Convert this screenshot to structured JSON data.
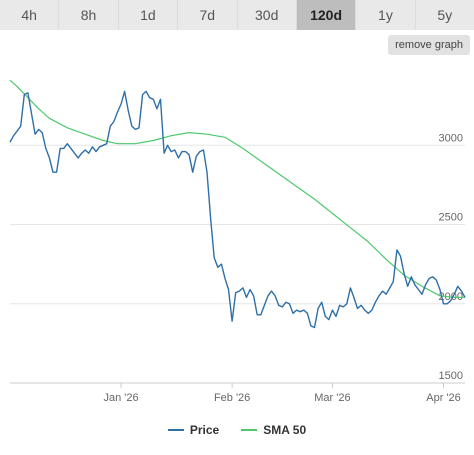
{
  "tabs": [
    {
      "label": "4h",
      "active": false
    },
    {
      "label": "8h",
      "active": false
    },
    {
      "label": "1d",
      "active": false
    },
    {
      "label": "7d",
      "active": false
    },
    {
      "label": "30d",
      "active": false
    },
    {
      "label": "120d",
      "active": true
    },
    {
      "label": "1y",
      "active": false
    },
    {
      "label": "5y",
      "active": false
    }
  ],
  "remove_graph_label": "remove graph",
  "colors": {
    "price": "#2f6fa8",
    "sma": "#4cc96c",
    "grid": "#e6e6e6",
    "axis": "#cccccc"
  },
  "chart_data": {
    "type": "line",
    "title": "",
    "xlabel": "",
    "ylabel": "",
    "ylim": [
      1500,
      3500
    ],
    "xlim": [
      "2025-12-01",
      "2026-04-07"
    ],
    "y_ticks": [
      1500,
      2000,
      2500,
      3000
    ],
    "x_ticks": [
      {
        "date": "2026-01-01",
        "label": "Jan '26"
      },
      {
        "date": "2026-02-01",
        "label": "Feb '26"
      },
      {
        "date": "2026-03-01",
        "label": "Mar '26"
      },
      {
        "date": "2026-04-01",
        "label": "Apr '26"
      }
    ],
    "grid": true,
    "legend": "bottom-center",
    "series": [
      {
        "name": "Price",
        "color": "#2f6fa8",
        "x": [
          "2025-12-01",
          "2025-12-02",
          "2025-12-04",
          "2025-12-05",
          "2025-12-06",
          "2025-12-08",
          "2025-12-09",
          "2025-12-10",
          "2025-12-11",
          "2025-12-12",
          "2025-12-13",
          "2025-12-14",
          "2025-12-15",
          "2025-12-16",
          "2025-12-17",
          "2025-12-19",
          "2025-12-20",
          "2025-12-21",
          "2025-12-22",
          "2025-12-23",
          "2025-12-24",
          "2025-12-25",
          "2025-12-26",
          "2025-12-27",
          "2025-12-28",
          "2025-12-29",
          "2025-12-30",
          "2025-12-31",
          "2026-01-01",
          "2026-01-02",
          "2026-01-03",
          "2026-01-04",
          "2026-01-05",
          "2026-01-06",
          "2026-01-07",
          "2026-01-08",
          "2026-01-09",
          "2026-01-10",
          "2026-01-11",
          "2026-01-12",
          "2026-01-13",
          "2026-01-14",
          "2026-01-15",
          "2026-01-16",
          "2026-01-17",
          "2026-01-18",
          "2026-01-19",
          "2026-01-20",
          "2026-01-21",
          "2026-01-22",
          "2026-01-23",
          "2026-01-24",
          "2026-01-25",
          "2026-01-26",
          "2026-01-27",
          "2026-01-28",
          "2026-01-29",
          "2026-01-30",
          "2026-01-31",
          "2026-02-01",
          "2026-02-02",
          "2026-02-03",
          "2026-02-04",
          "2026-02-05",
          "2026-02-06",
          "2026-02-07",
          "2026-02-08",
          "2026-02-09",
          "2026-02-11",
          "2026-02-12",
          "2026-02-13",
          "2026-02-14",
          "2026-02-15",
          "2026-02-16",
          "2026-02-17",
          "2026-02-18",
          "2026-02-19",
          "2026-02-20",
          "2026-02-21",
          "2026-02-22",
          "2026-02-23",
          "2026-02-24",
          "2026-02-25",
          "2026-02-26",
          "2026-02-27",
          "2026-02-28",
          "2026-03-01",
          "2026-03-02",
          "2026-03-03",
          "2026-03-04",
          "2026-03-05",
          "2026-03-06",
          "2026-03-07",
          "2026-03-08",
          "2026-03-09",
          "2026-03-10",
          "2026-03-11",
          "2026-03-12",
          "2026-03-13",
          "2026-03-14",
          "2026-03-15",
          "2026-03-16",
          "2026-03-17",
          "2026-03-18",
          "2026-03-19",
          "2026-03-20",
          "2026-03-21",
          "2026-03-22",
          "2026-03-23",
          "2026-03-24",
          "2026-03-25",
          "2026-03-26",
          "2026-03-27",
          "2026-03-28",
          "2026-03-29",
          "2026-03-30",
          "2026-03-31",
          "2026-04-01",
          "2026-04-02",
          "2026-04-03",
          "2026-04-04",
          "2026-04-05",
          "2026-04-06",
          "2026-04-07"
        ],
        "y": [
          3020,
          3060,
          3120,
          3320,
          3330,
          3070,
          3100,
          3080,
          2980,
          2920,
          2830,
          2830,
          2980,
          2980,
          3010,
          2950,
          2920,
          2950,
          2970,
          2950,
          2990,
          2960,
          2990,
          3000,
          3010,
          3120,
          3150,
          3210,
          3260,
          3340,
          3220,
          3120,
          3100,
          3110,
          3320,
          3340,
          3300,
          3290,
          3230,
          3290,
          2950,
          3000,
          2960,
          2970,
          2920,
          2960,
          2960,
          2940,
          2830,
          2930,
          2960,
          2970,
          2830,
          2540,
          2290,
          2230,
          2250,
          2160,
          2090,
          1890,
          2070,
          2080,
          2100,
          2040,
          2090,
          2050,
          1930,
          1930,
          2050,
          2080,
          2050,
          1990,
          1980,
          2010,
          2000,
          1940,
          1960,
          1950,
          1960,
          1940,
          1860,
          1850,
          1970,
          2010,
          1920,
          1900,
          1960,
          1920,
          1990,
          1980,
          2000,
          2100,
          2040,
          1970,
          1990,
          1960,
          1940,
          1960,
          2010,
          2050,
          2080,
          2060,
          2100,
          2140,
          2340,
          2300,
          2190,
          2110,
          2170,
          2120,
          2090,
          2060,
          2120,
          2160,
          2170,
          2150,
          2090,
          2000,
          2000,
          2020,
          2060,
          2110,
          2080,
          2040
        ]
      },
      {
        "name": "SMA 50",
        "color": "#4cc96c",
        "x": [
          "2025-12-01",
          "2025-12-03",
          "2025-12-06",
          "2025-12-09",
          "2025-12-12",
          "2025-12-17",
          "2025-12-22",
          "2025-12-27",
          "2025-12-31",
          "2026-01-05",
          "2026-01-10",
          "2026-01-15",
          "2026-01-20",
          "2026-01-25",
          "2026-01-30",
          "2026-02-04",
          "2026-02-09",
          "2026-02-14",
          "2026-02-19",
          "2026-02-24",
          "2026-03-01",
          "2026-03-06",
          "2026-03-11",
          "2026-03-16",
          "2026-03-21",
          "2026-03-26",
          "2026-03-31",
          "2026-04-04",
          "2026-04-07"
        ],
        "y": [
          3410,
          3370,
          3300,
          3230,
          3170,
          3110,
          3070,
          3030,
          3010,
          3010,
          3030,
          3060,
          3080,
          3070,
          3050,
          2980,
          2900,
          2820,
          2740,
          2660,
          2570,
          2480,
          2390,
          2280,
          2180,
          2110,
          2050,
          2040,
          2040
        ]
      }
    ]
  }
}
